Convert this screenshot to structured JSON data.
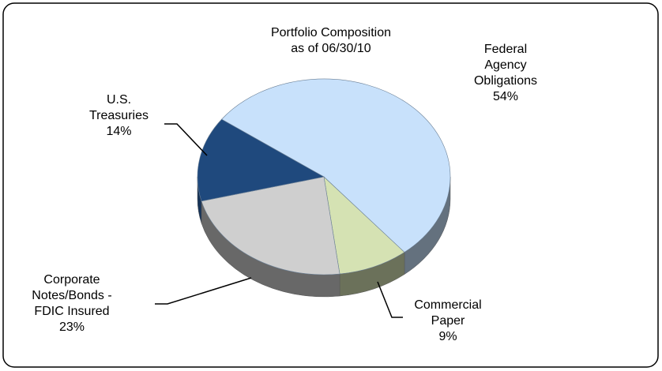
{
  "chart_data": {
    "type": "pie",
    "title": "Portfolio Composition",
    "subtitle": "as of 06/30/10",
    "categories": [
      "Federal Agency Obligations",
      "Commercial Paper",
      "Corporate Notes/Bonds - FDIC Insured",
      "U.S. Treasuries"
    ],
    "values": [
      54,
      9,
      23,
      14
    ],
    "value_labels": [
      "54%",
      "9%",
      "23%",
      "14%"
    ],
    "colors": [
      "#c8e1fb",
      "#d5e2b3",
      "#cfcfcf",
      "#1f497d"
    ]
  }
}
